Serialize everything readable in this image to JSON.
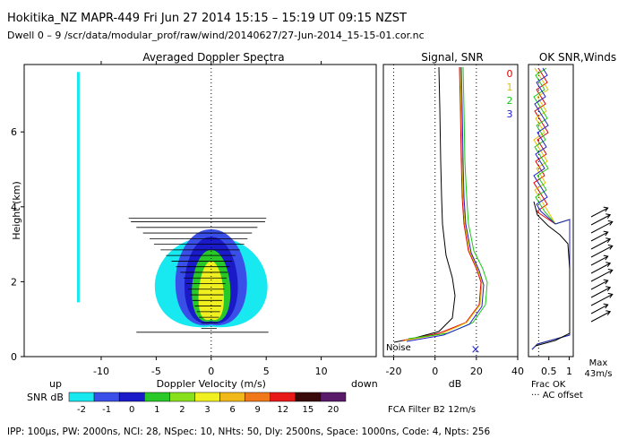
{
  "header": {
    "line1": "Hokitika_NZ   MAPR-449   Fri Jun 27 2014 15:15 – 15:19 UT 09:15 NZST",
    "line2": "Dwell   0  –   9    /scr/data/modular_prof/raw/wind/20140627/27-Jun-2014_15-15-01.cor.nc"
  },
  "footer": {
    "text": "IPP: 100µs,   PW: 2000ns,   NCI:  28,  NSpec: 10,  NHts: 50,  Dly: 2500ns,   Space: 1000ns,   Code: 4,   Npts: 256"
  },
  "chart_data": [
    {
      "type": "heatmap",
      "title": "Averaged Doppler Spectra",
      "xlabel": "Doppler Velocity (m/s)",
      "ylabel": "Height (km)",
      "x_left_note": "up",
      "x_right_note": "down",
      "xlim": [
        -17,
        15
      ],
      "ylim": [
        0,
        7.8
      ],
      "xticks": [
        "-10",
        "-5",
        "0",
        "5",
        "10"
      ],
      "yticks": [
        "0",
        "2",
        "4",
        "6"
      ],
      "grid": false,
      "colorbar": {
        "label": "SNR dB",
        "ticks": [
          "-2",
          "-1",
          "0",
          "1",
          "2",
          "3",
          "6",
          "9",
          "12",
          "15",
          "20"
        ],
        "colors": [
          "#18e8f0",
          "#3a4ee8",
          "#1a1ac8",
          "#28c828",
          "#88e01c",
          "#f0f020",
          "#f0b818",
          "#f07818",
          "#e81818",
          "#3a0a0a",
          "#5a1a6a"
        ]
      },
      "zero_line_x": 0
    },
    {
      "type": "line",
      "title": "Signal, SNR",
      "xlabel": "dB",
      "xticks": [
        "-20",
        "0",
        "20",
        "40"
      ],
      "xlim": [
        -25,
        40
      ],
      "ylim": [
        0,
        7.8
      ],
      "annotation": "Noise",
      "marker": "×"
    },
    {
      "type": "line",
      "title": "OK SNR,Winds",
      "xlabel": "Frac OK",
      "xticks": [
        "0.5",
        "1"
      ],
      "xlim": [
        0,
        1.1
      ],
      "ylim": [
        0,
        7.8
      ],
      "legend_entries": [
        {
          "name": "0",
          "color": "#e00000"
        },
        {
          "name": "1",
          "color": "#e0c000"
        },
        {
          "name": "2",
          "color": "#18c818"
        },
        {
          "name": "3",
          "color": "#2020c8"
        }
      ],
      "notes": [
        "Max",
        "43m/s",
        "··· AC offset",
        "FCA Filter B2 12m/s"
      ]
    }
  ]
}
